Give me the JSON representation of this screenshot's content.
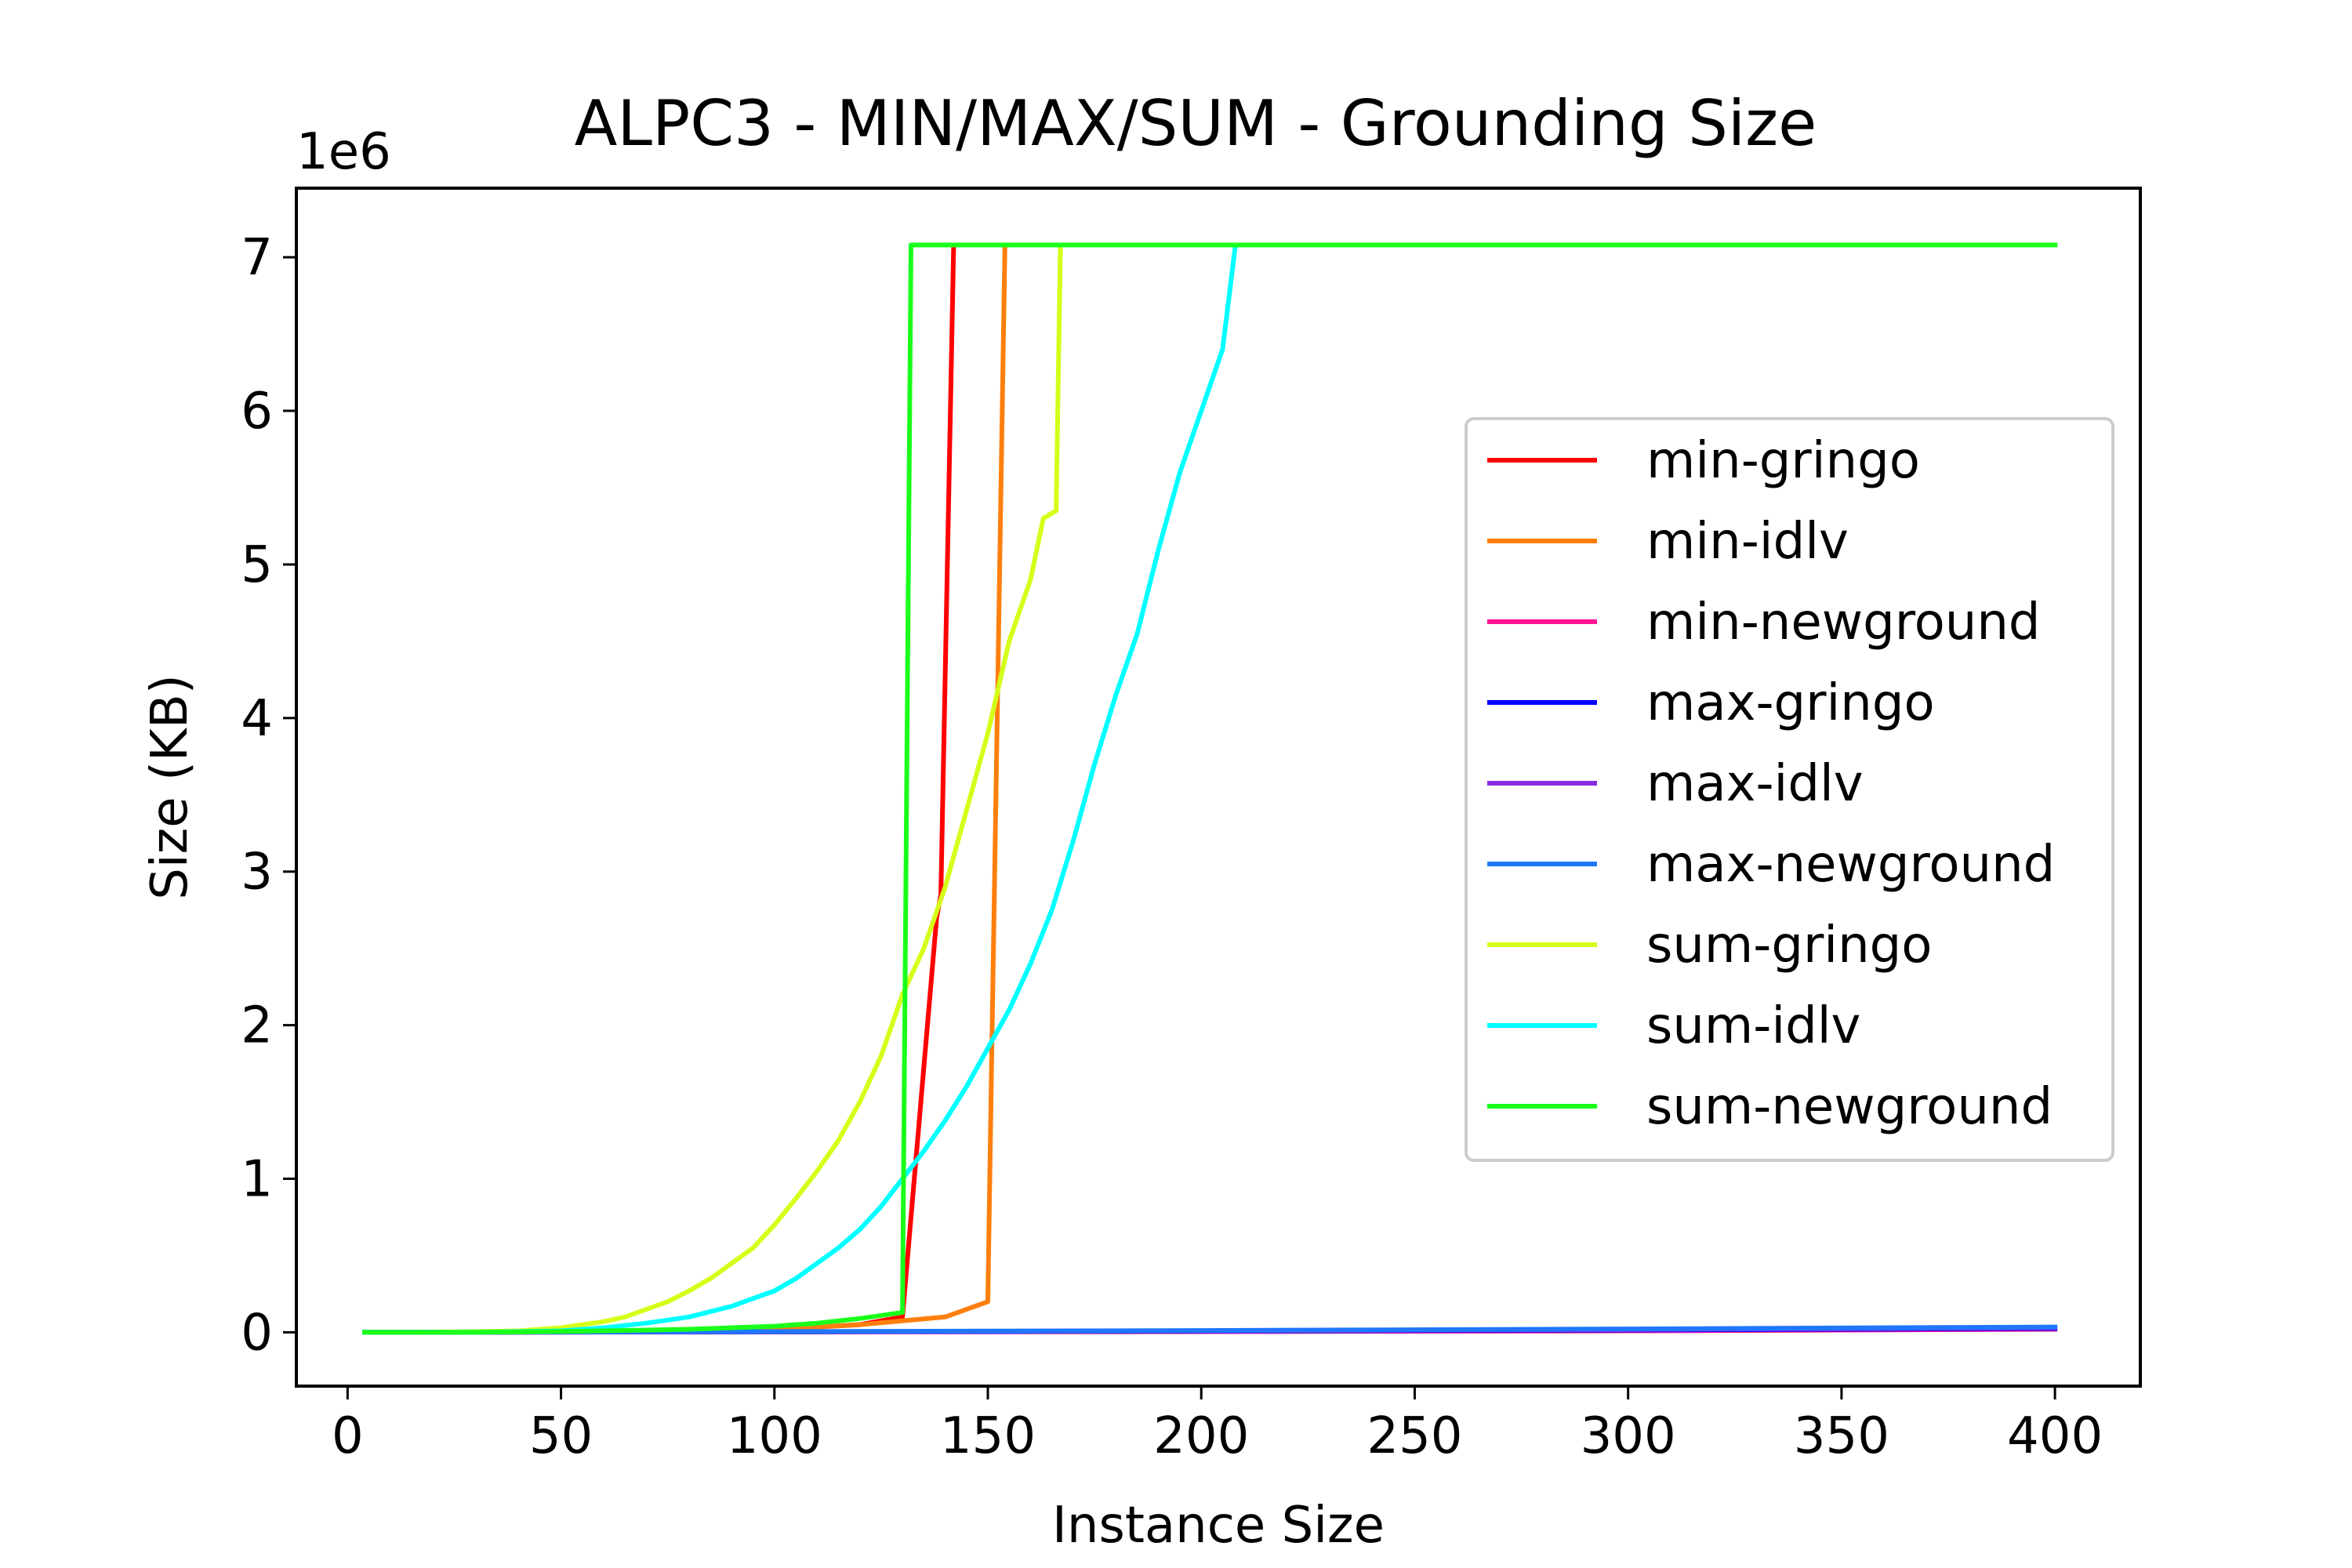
{
  "chart_data": {
    "type": "line",
    "title": "ALPC3 - MIN/MAX/SUM - Grounding Size",
    "xlabel": "Instance Size",
    "ylabel": "Size (KB)",
    "y_offset_label": "1e6",
    "xlim": [
      -12,
      420
    ],
    "ylim": [
      -0.35,
      7.45
    ],
    "y_scale_note": "values in units of 1e6 KB",
    "xticks": [
      0,
      50,
      100,
      150,
      200,
      250,
      300,
      350,
      400
    ],
    "xtick_labels": [
      "0",
      "50",
      "100",
      "150",
      "200",
      "250",
      "300",
      "350",
      "400"
    ],
    "yticks": [
      0,
      1,
      2,
      3,
      4,
      5,
      6,
      7
    ],
    "ytick_labels": [
      "0",
      "1",
      "2",
      "3",
      "4",
      "5",
      "6",
      "7"
    ],
    "legend_position": "center-right",
    "grid": false,
    "series": [
      {
        "name": "min-gringo",
        "color": "#ff0000",
        "x": [
          4,
          20,
          40,
          60,
          80,
          100,
          120,
          130,
          138,
          139,
          142,
          200,
          300,
          400
        ],
        "y": [
          0,
          0,
          0.002,
          0.005,
          0.01,
          0.02,
          0.05,
          0.1,
          2.7,
          2.85,
          7.08,
          7.08,
          7.08,
          7.08
        ]
      },
      {
        "name": "min-idlv",
        "color": "#ff7f0e",
        "x": [
          4,
          20,
          40,
          60,
          80,
          100,
          120,
          140,
          150,
          151,
          154,
          200,
          300,
          400
        ],
        "y": [
          0,
          0,
          0.002,
          0.005,
          0.01,
          0.02,
          0.05,
          0.1,
          0.2,
          1.95,
          7.08,
          7.08,
          7.08,
          7.08
        ]
      },
      {
        "name": "min-newground",
        "color": "#ff1493",
        "x": [
          4,
          100,
          200,
          300,
          400
        ],
        "y": [
          0,
          0.002,
          0.005,
          0.01,
          0.02
        ]
      },
      {
        "name": "max-gringo",
        "color": "#0000ff",
        "x": [
          4,
          100,
          200,
          300,
          400
        ],
        "y": [
          0,
          0.003,
          0.008,
          0.015,
          0.025
        ]
      },
      {
        "name": "max-idlv",
        "color": "#8a2be2",
        "x": [
          4,
          100,
          200,
          300,
          400
        ],
        "y": [
          0,
          0.004,
          0.01,
          0.018,
          0.03
        ]
      },
      {
        "name": "max-newground",
        "color": "#1f77ff",
        "x": [
          4,
          100,
          200,
          300,
          400
        ],
        "y": [
          0,
          0.005,
          0.012,
          0.022,
          0.035
        ]
      },
      {
        "name": "sum-gringo",
        "color": "#d4ff1a",
        "x": [
          4,
          20,
          30,
          40,
          50,
          55,
          60,
          65,
          70,
          75,
          80,
          85,
          90,
          95,
          100,
          105,
          110,
          115,
          120,
          125,
          130,
          135,
          140,
          145,
          150,
          155,
          160,
          163,
          166,
          167,
          200,
          300,
          400
        ],
        "y": [
          0,
          0,
          0.005,
          0.01,
          0.03,
          0.05,
          0.07,
          0.1,
          0.15,
          0.2,
          0.27,
          0.35,
          0.45,
          0.55,
          0.7,
          0.87,
          1.05,
          1.25,
          1.5,
          1.8,
          2.2,
          2.5,
          2.9,
          3.4,
          3.9,
          4.5,
          4.9,
          5.3,
          5.35,
          7.08,
          7.08,
          7.08,
          7.08
        ]
      },
      {
        "name": "sum-idlv",
        "color": "#00ffff",
        "x": [
          4,
          30,
          40,
          50,
          60,
          70,
          80,
          90,
          100,
          105,
          110,
          115,
          120,
          125,
          130,
          135,
          140,
          145,
          150,
          155,
          160,
          165,
          170,
          175,
          180,
          185,
          190,
          195,
          200,
          205,
          208,
          300,
          400
        ],
        "y": [
          0,
          0,
          0.005,
          0.01,
          0.03,
          0.06,
          0.1,
          0.17,
          0.27,
          0.35,
          0.45,
          0.55,
          0.67,
          0.82,
          1.0,
          1.18,
          1.38,
          1.6,
          1.85,
          2.1,
          2.4,
          2.75,
          3.2,
          3.7,
          4.15,
          4.55,
          5.1,
          5.6,
          6.0,
          6.4,
          7.08,
          7.08,
          7.08
        ]
      },
      {
        "name": "sum-newground",
        "color": "#1aff1a",
        "x": [
          4,
          20,
          40,
          60,
          80,
          100,
          110,
          120,
          130,
          132,
          200,
          300,
          400
        ],
        "y": [
          0,
          0,
          0.002,
          0.01,
          0.02,
          0.04,
          0.06,
          0.09,
          0.13,
          7.08,
          7.08,
          7.08,
          7.08
        ]
      }
    ]
  }
}
